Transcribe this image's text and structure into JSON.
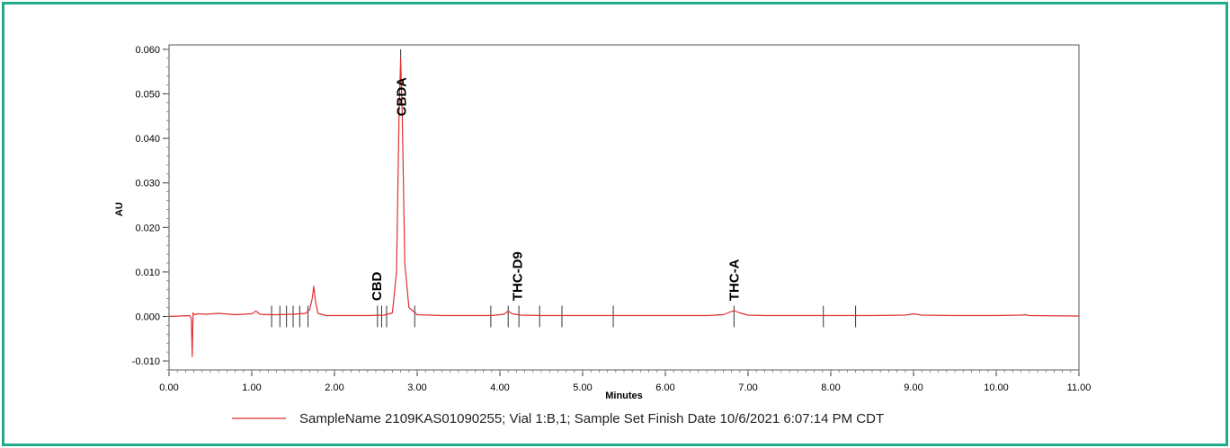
{
  "chart_data": {
    "type": "line",
    "xlabel": "Minutes",
    "ylabel": "AU",
    "xlim": [
      0.0,
      11.0
    ],
    "ylim": [
      -0.012,
      0.061
    ],
    "x_ticks": [
      "0.00",
      "1.00",
      "2.00",
      "3.00",
      "4.00",
      "5.00",
      "6.00",
      "7.00",
      "8.00",
      "9.00",
      "10.00",
      "11.00"
    ],
    "y_ticks": [
      "-0.010",
      "0.000",
      "0.010",
      "0.020",
      "0.030",
      "0.040",
      "0.050",
      "0.060"
    ],
    "grid": false,
    "legend_position": "bottom-center",
    "line_color": "#e03030",
    "series": [
      {
        "name": "SampleName 2109KAS01090255; Vial 1:B,1; Sample Set Finish Date 10/6/2021 6:07:14 PM CDT",
        "x": [
          0.0,
          0.25,
          0.27,
          0.28,
          0.29,
          0.31,
          0.35,
          0.45,
          0.6,
          0.8,
          1.0,
          1.05,
          1.1,
          1.2,
          1.3,
          1.5,
          1.65,
          1.7,
          1.73,
          1.75,
          1.77,
          1.8,
          1.9,
          2.1,
          2.4,
          2.6,
          2.7,
          2.75,
          2.78,
          2.8,
          2.82,
          2.85,
          2.9,
          3.0,
          3.3,
          3.6,
          3.9,
          4.05,
          4.1,
          4.15,
          4.25,
          4.5,
          5.0,
          5.5,
          6.0,
          6.5,
          6.7,
          6.8,
          6.83,
          6.9,
          7.0,
          7.2,
          7.5,
          8.0,
          8.5,
          8.9,
          9.0,
          9.1,
          9.5,
          10.0,
          10.3,
          10.35,
          10.4,
          11.0
        ],
        "y": [
          0.0,
          0.0002,
          -0.0005,
          -0.009,
          0.0008,
          0.0004,
          0.0006,
          0.0005,
          0.0007,
          0.0004,
          0.0006,
          0.0012,
          0.0005,
          0.0004,
          0.0004,
          0.0005,
          0.0007,
          0.0015,
          0.004,
          0.0068,
          0.0035,
          0.0007,
          0.0002,
          0.0002,
          0.0002,
          0.0003,
          0.0008,
          0.01,
          0.045,
          0.058,
          0.045,
          0.012,
          0.002,
          0.0004,
          0.0002,
          0.0002,
          0.0002,
          0.0005,
          0.0012,
          0.0006,
          0.0003,
          0.0002,
          0.0002,
          0.0002,
          0.0002,
          0.0002,
          0.0004,
          0.0011,
          0.0013,
          0.0008,
          0.0003,
          0.0002,
          0.0002,
          0.0002,
          0.0002,
          0.0003,
          0.0006,
          0.0003,
          0.0002,
          0.0002,
          0.0003,
          0.0004,
          0.0002,
          0.0001
        ]
      }
    ],
    "peak_labels": [
      {
        "text": "CBD",
        "x": 2.5,
        "y": 0.0035
      },
      {
        "text": "CBDA",
        "x": 2.8,
        "y": 0.045
      },
      {
        "text": "THC-D9",
        "x": 4.2,
        "y": 0.0035
      },
      {
        "text": "THC-A",
        "x": 6.82,
        "y": 0.0035
      }
    ],
    "integration_marks_x": [
      1.24,
      1.34,
      1.42,
      1.5,
      1.58,
      1.68,
      2.52,
      2.57,
      2.63,
      2.97,
      3.89,
      4.1,
      4.23,
      4.48,
      4.75,
      5.37,
      6.83,
      7.91,
      8.3
    ]
  }
}
